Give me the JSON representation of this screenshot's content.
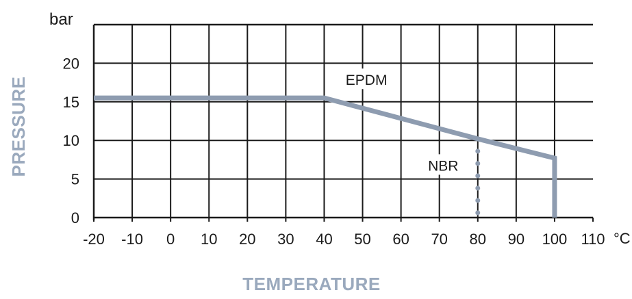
{
  "chart_data": {
    "type": "line",
    "xlabel": "TEMPERATURE",
    "ylabel": "PRESSURE",
    "y_unit": "bar",
    "x_unit": "°C",
    "xlim": [
      -20,
      110
    ],
    "ylim": [
      0,
      25
    ],
    "x_ticks": [
      -20,
      -10,
      0,
      10,
      20,
      30,
      40,
      50,
      60,
      70,
      80,
      90,
      100,
      110
    ],
    "y_ticks": [
      0,
      5,
      10,
      15,
      20
    ],
    "grid": true,
    "series": [
      {
        "name": "EPDM",
        "color": "#8e9cb0",
        "style": "solid",
        "x": [
          -20,
          40,
          80,
          100,
          100
        ],
        "y": [
          15.5,
          15.5,
          10.2,
          7.7,
          0
        ]
      },
      {
        "name": "NBR",
        "color": "#8e9cb0",
        "style": "dotted",
        "x": [
          80,
          80
        ],
        "y": [
          10.2,
          0
        ]
      }
    ],
    "annotations": [
      {
        "text": "EPDM",
        "x": 51,
        "y": 17.8
      },
      {
        "text": "NBR",
        "x": 71,
        "y": 6.7
      }
    ]
  }
}
